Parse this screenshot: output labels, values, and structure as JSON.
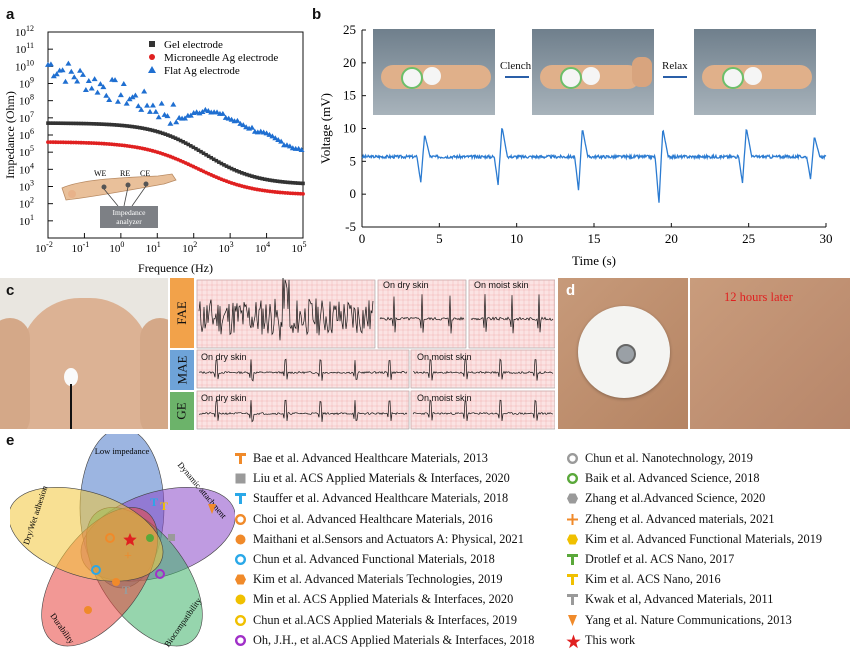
{
  "panel_labels": {
    "a": "a",
    "b": "b",
    "c": "c",
    "d": "d",
    "e": "e"
  },
  "chart_a": {
    "type": "scatter",
    "xlabel": "Frequence (Hz)",
    "ylabel": "Impedance (Ohm)",
    "x_ticks": [
      "10-2",
      "10-1",
      "100",
      "101",
      "102",
      "103",
      "104",
      "105"
    ],
    "y_ticks": [
      "101",
      "102",
      "103",
      "104",
      "105",
      "106",
      "107",
      "108",
      "109",
      "1010",
      "1011",
      "1012"
    ],
    "x_range_log": [
      -2,
      5
    ],
    "y_range_log": [
      0,
      12
    ],
    "inset": {
      "we": "WE",
      "re": "RE",
      "ce": "CE",
      "box": "Impedance analyzer"
    },
    "series": [
      {
        "name": "Gel electrode",
        "color": "#333333"
      },
      {
        "name": "Microneedle Ag electrode",
        "color": "#e02020"
      },
      {
        "name": "Flat Ag electrode",
        "color": "#1f6fd1"
      }
    ]
  },
  "chart_b": {
    "type": "line",
    "xlabel": "Time (s)",
    "ylabel": "Voltage (mV)",
    "xlim": [
      0,
      30
    ],
    "ylim": [
      -5,
      25
    ],
    "x_ticks": [
      "0",
      "5",
      "10",
      "15",
      "20",
      "25",
      "30"
    ],
    "y_ticks": [
      "-5",
      "0",
      "5",
      "10",
      "15",
      "20",
      "25"
    ],
    "baseline": 5.7,
    "events": [
      {
        "t": 3.8,
        "low": 1.8,
        "high": 9.1
      },
      {
        "t": 8.8,
        "low": 1.4,
        "high": 10.3
      },
      {
        "t": 14.0,
        "low": 0.6,
        "high": 10.0
      },
      {
        "t": 19.2,
        "low": -1.3,
        "high": 10.0
      },
      {
        "t": 24.6,
        "low": 1.7,
        "high": 10.1
      },
      {
        "t": 29.0,
        "low": 2.3,
        "high": 8.8
      }
    ],
    "color": "#2b7bd1",
    "photo_labels": {
      "clench": "Clench",
      "relax": "Relax"
    }
  },
  "panel_c": {
    "tabs": [
      "FAE",
      "MAE",
      "GE"
    ],
    "tab_colors": [
      "#f2a24a",
      "#6ea3d8",
      "#6cb36a"
    ],
    "dry": "On dry skin",
    "moist": "On moist skin"
  },
  "panel_d": {
    "caption": "12 hours later"
  },
  "venn": {
    "labels": [
      "Low impedance",
      "Dynamic attachment",
      "Biocompatibility",
      "Durability",
      "Dry/Wet adhesion"
    ],
    "colors": [
      "#4a78c9",
      "#8a48c8",
      "#3fb26a",
      "#e8433e",
      "#f3c73a"
    ]
  },
  "references_left": [
    {
      "text": "Bae et al. Advanced Healthcare Materials, 2013",
      "icon": "t-icon",
      "color": "#f08a2a"
    },
    {
      "text": "Liu et al. ACS Applied Materials & Interfaces, 2020",
      "icon": "square-icon",
      "color": "#9a9a9a"
    },
    {
      "text": "Stauffer et al. Advanced Healthcare Materials, 2018",
      "icon": "t-icon",
      "color": "#2aa8e8"
    },
    {
      "text": "Choi et al. Advanced Healthcare Materials, 2016",
      "icon": "ring-icon",
      "color": "#f08a2a"
    },
    {
      "text": "Maithani et al.Sensors and Actuators A: Physical, 2021",
      "icon": "dot-icon",
      "color": "#f08a2a"
    },
    {
      "text": "Chun et al. Advanced Functional Materials, 2018",
      "icon": "ring-icon",
      "color": "#2aa8e8"
    },
    {
      "text": "Kim et al. Advanced Materials Technologies, 2019",
      "icon": "hexagon-icon",
      "color": "#f08a2a"
    },
    {
      "text": "Min et al. ACS Applied Materials & Interfaces, 2020",
      "icon": "dot-icon",
      "color": "#f0c000"
    },
    {
      "text": "Chun et al.ACS Applied Materials & Interfaces, 2019",
      "icon": "ring-icon",
      "color": "#f0c000"
    },
    {
      "text": "Oh, J.H., et al.ACS Applied Materials & Interfaces, 2018",
      "icon": "ring-icon",
      "color": "#a030c8"
    }
  ],
  "references_right": [
    {
      "text": "Chun et al. Nanotechnology, 2019",
      "icon": "ring-icon",
      "color": "#9a9a9a"
    },
    {
      "text": "Baik et al. Advanced Science, 2018",
      "icon": "ring-icon",
      "color": "#5aa83a"
    },
    {
      "text": "Zhang et al.Advanced Science, 2020",
      "icon": "hexagon-icon",
      "color": "#9a9a9a"
    },
    {
      "text": "Zheng et al. Advanced materials, 2021",
      "icon": "plus-icon",
      "color": "#f08a2a"
    },
    {
      "text": "Kim et al. Advanced Functional Materials, 2019",
      "icon": "hexagon-icon",
      "color": "#f0c000"
    },
    {
      "text": "Drotlef et al. ACS Nano, 2017",
      "icon": "t-icon",
      "color": "#5aa83a"
    },
    {
      "text": "Kim et al. ACS Nano, 2016",
      "icon": "t-icon",
      "color": "#f0c000"
    },
    {
      "text": "Kwak et al, Advanced Materials, 2011",
      "icon": "t-icon",
      "color": "#9a9a9a"
    },
    {
      "text": "Yang et al. Nature Communications, 2013",
      "icon": "triangle-down-icon",
      "color": "#f08a2a"
    },
    {
      "text": "This work",
      "icon": "star-icon",
      "color": "#e02020"
    }
  ]
}
